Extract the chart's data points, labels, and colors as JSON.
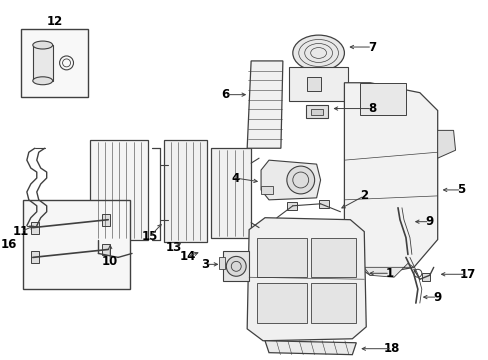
{
  "background_color": "#ffffff",
  "line_color": "#404040",
  "label_color": "#000000",
  "fig_width": 4.89,
  "fig_height": 3.6,
  "dpi": 100,
  "label_fontsize": 8.5
}
